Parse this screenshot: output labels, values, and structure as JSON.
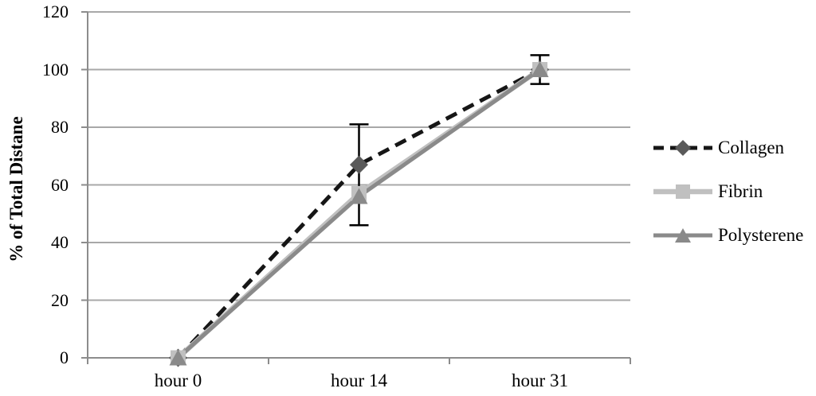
{
  "chart_data": {
    "type": "line",
    "title": "",
    "xlabel": "",
    "ylabel": "% of Total Distane",
    "categories": [
      "hour 0",
      "hour 14",
      "hour 31"
    ],
    "ylim": [
      0,
      120
    ],
    "yticks": [
      0,
      20,
      40,
      60,
      80,
      100,
      120
    ],
    "grid": true,
    "legend_position": "right",
    "series": [
      {
        "name": "Collagen",
        "values": [
          0,
          67,
          100
        ],
        "line_color": "#161616",
        "line_style": "dashed",
        "line_width": 5,
        "marker": "diamond",
        "marker_color": "#5a5a5a"
      },
      {
        "name": "Fibrin",
        "values": [
          0,
          57,
          100
        ],
        "line_color": "#c0c0c0",
        "line_style": "solid",
        "line_width": 6.5,
        "marker": "square",
        "marker_color": "#c0c0c0"
      },
      {
        "name": "Polysterene",
        "values": [
          0,
          56,
          100
        ],
        "line_color": "#8a8a8a",
        "line_style": "solid",
        "line_width": 5,
        "marker": "triangle",
        "marker_color": "#8a8a8a"
      }
    ],
    "error_bars": [
      {
        "category": "hour 14",
        "category_index": 1,
        "top": 81,
        "bottom": 46
      },
      {
        "category": "hour 31",
        "category_index": 2,
        "top": 105,
        "bottom": 95
      }
    ],
    "error_bar_color": "#000000",
    "grid_color": "#a8a8a8",
    "axis_color": "#8c8c8c",
    "text_color": "#000000"
  }
}
